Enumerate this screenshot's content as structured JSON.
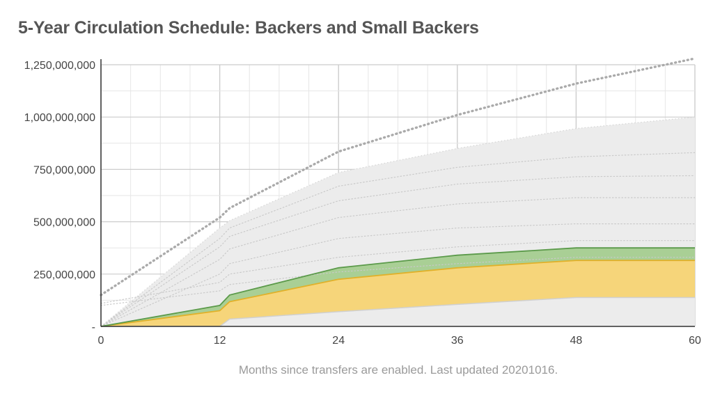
{
  "chart_data": {
    "type": "area",
    "title": "5-Year Circulation Schedule: Backers and Small Backers",
    "caption": "Months since transfers are enabled. Last updated 20201016.",
    "xlabel": "",
    "ylabel": "",
    "xlim": [
      0,
      60
    ],
    "ylim": [
      0,
      1250000000
    ],
    "x_ticks": [
      0,
      12,
      24,
      36,
      48,
      60
    ],
    "x_tick_labels": [
      "0",
      "12",
      "24",
      "36",
      "48",
      "60"
    ],
    "y_ticks": [
      0,
      250000000,
      500000000,
      750000000,
      1000000000,
      1250000000
    ],
    "y_tick_labels": [
      "-",
      "250,000,000",
      "500,000,000",
      "750,000,000",
      "1,000,000,000",
      "1,250,000,000"
    ],
    "grid": true,
    "legend": "none",
    "colors": {
      "gray_band": "#ececec",
      "gray_band_line": "#d4d4d4",
      "small_backers_fill": "#a9cf95",
      "small_backers_line": "#5b9a4a",
      "backers_fill": "#f6d57a",
      "backers_line": "#e0b12a",
      "lower_line": "#d0d0d0",
      "dotted_lines": "#c9c9c9",
      "total_dotted": "#aaaaaa"
    },
    "series": [
      {
        "role": "total-dotted",
        "x": [
          0,
          12,
          13,
          24,
          36,
          48,
          60
        ],
        "values": [
          150000000,
          520000000,
          565000000,
          835000000,
          1010000000,
          1160000000,
          1280000000
        ]
      },
      {
        "role": "gray-band-top",
        "x": [
          0,
          12,
          13,
          24,
          36,
          48,
          60
        ],
        "values": [
          0,
          470000000,
          505000000,
          735000000,
          850000000,
          945000000,
          1000000000
        ]
      },
      {
        "role": "small-backers-top",
        "x": [
          0,
          12,
          13,
          24,
          36,
          48,
          60
        ],
        "values": [
          0,
          100000000,
          150000000,
          280000000,
          340000000,
          375000000,
          375000000
        ]
      },
      {
        "role": "backers-top",
        "x": [
          0,
          12,
          13,
          24,
          36,
          48,
          60
        ],
        "values": [
          0,
          75000000,
          118000000,
          225000000,
          280000000,
          315000000,
          315000000
        ]
      },
      {
        "role": "lower-line",
        "x": [
          0,
          12,
          13,
          24,
          36,
          48,
          60
        ],
        "values": [
          0,
          0,
          35000000,
          70000000,
          105000000,
          138000000,
          138000000
        ]
      },
      {
        "role": "dotted",
        "x": [
          0,
          12,
          13,
          24,
          36,
          48,
          60
        ],
        "values": [
          0,
          420000000,
          470000000,
          670000000,
          760000000,
          810000000,
          830000000
        ]
      },
      {
        "role": "dotted",
        "x": [
          0,
          12,
          13,
          24,
          36,
          48,
          60
        ],
        "values": [
          0,
          380000000,
          430000000,
          600000000,
          680000000,
          715000000,
          720000000
        ]
      },
      {
        "role": "dotted",
        "x": [
          0,
          12,
          13,
          24,
          36,
          48,
          60
        ],
        "values": [
          0,
          320000000,
          370000000,
          520000000,
          585000000,
          615000000,
          615000000
        ]
      },
      {
        "role": "dotted",
        "x": [
          0,
          12,
          13,
          24,
          36,
          48,
          60
        ],
        "values": [
          0,
          250000000,
          300000000,
          420000000,
          470000000,
          490000000,
          490000000
        ]
      },
      {
        "role": "dotted",
        "x": [
          0,
          12,
          13,
          24,
          36,
          48,
          60
        ],
        "values": [
          110000000,
          210000000,
          250000000,
          330000000,
          380000000,
          410000000,
          410000000
        ]
      },
      {
        "role": "dotted",
        "x": [
          0,
          12,
          13,
          24,
          36,
          48,
          60
        ],
        "values": [
          100000000,
          170000000,
          200000000,
          260000000,
          300000000,
          330000000,
          330000000
        ]
      }
    ]
  }
}
